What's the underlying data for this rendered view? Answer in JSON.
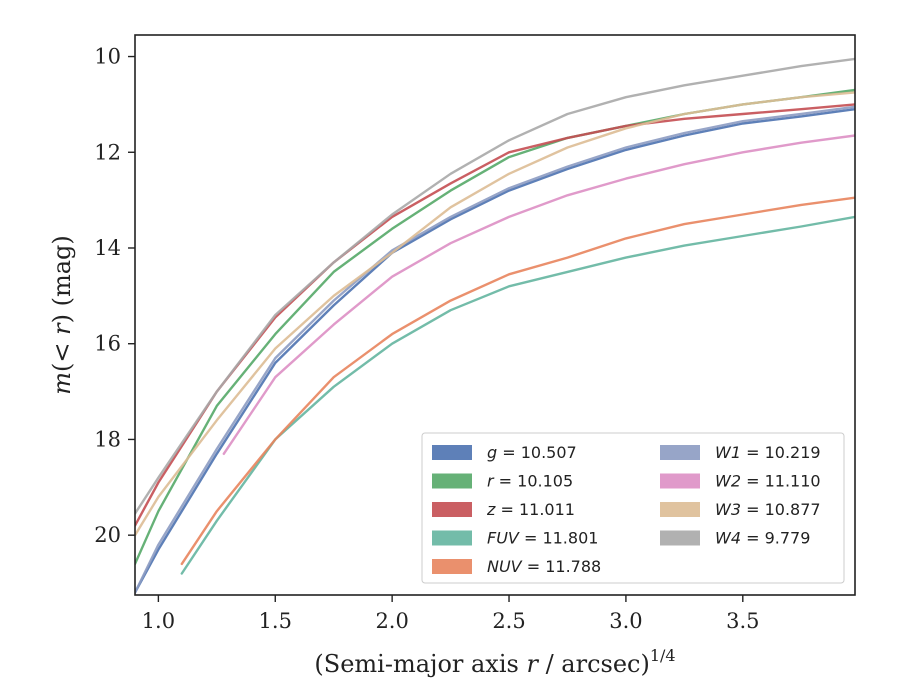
{
  "chart_data": {
    "type": "line",
    "xlabel": "(Semi-major axis r / arcsec)^1/4",
    "ylabel": "m(< r) (mag)",
    "xlim": [
      0.9,
      3.98
    ],
    "ylim": [
      21.25,
      9.55
    ],
    "y_inverted": true,
    "grid": false,
    "legend_placement": "lower-right",
    "legend_columns": 2,
    "x_ticks": [
      "1.0",
      "1.5",
      "2.0",
      "2.5",
      "3.0",
      "3.5"
    ],
    "y_ticks": [
      "10",
      "12",
      "14",
      "16",
      "18",
      "20"
    ],
    "series": [
      {
        "name": "g",
        "value": "10.507",
        "color": "#4c72b0",
        "x": [
          0.9,
          1.0,
          1.25,
          1.5,
          1.75,
          2.0,
          2.25,
          2.5,
          2.75,
          3.0,
          3.25,
          3.5,
          3.75,
          3.98
        ],
        "y": [
          21.2,
          20.3,
          18.3,
          16.4,
          15.2,
          14.1,
          13.4,
          12.8,
          12.35,
          11.95,
          11.65,
          11.4,
          11.25,
          11.1
        ]
      },
      {
        "name": "r",
        "value": "10.105",
        "color": "#55a868",
        "x": [
          0.9,
          1.0,
          1.25,
          1.5,
          1.75,
          2.0,
          2.25,
          2.5,
          2.75,
          3.0,
          3.25,
          3.5,
          3.75,
          3.98
        ],
        "y": [
          20.6,
          19.5,
          17.3,
          15.8,
          14.5,
          13.6,
          12.8,
          12.1,
          11.7,
          11.45,
          11.2,
          11.0,
          10.85,
          10.7
        ]
      },
      {
        "name": "z",
        "value": "11.011",
        "color": "#c44e52",
        "x": [
          0.9,
          1.0,
          1.25,
          1.5,
          1.75,
          2.0,
          2.25,
          2.5,
          2.75,
          3.0,
          3.25,
          3.5,
          3.75,
          3.98
        ],
        "y": [
          19.8,
          18.9,
          17.0,
          15.45,
          14.3,
          13.35,
          12.65,
          12.0,
          11.7,
          11.45,
          11.3,
          11.2,
          11.1,
          11.0
        ]
      },
      {
        "name": "FUV",
        "value": "11.801",
        "color": "#64b5a0",
        "x": [
          1.1,
          1.25,
          1.5,
          1.75,
          2.0,
          2.25,
          2.5,
          2.75,
          3.0,
          3.25,
          3.5,
          3.75,
          3.98
        ],
        "y": [
          20.8,
          19.7,
          18.0,
          16.9,
          16.0,
          15.3,
          14.8,
          14.5,
          14.2,
          13.95,
          13.75,
          13.55,
          13.35
        ]
      },
      {
        "name": "NUV",
        "value": "11.788",
        "color": "#e8845d",
        "x": [
          1.1,
          1.25,
          1.5,
          1.75,
          2.0,
          2.25,
          2.5,
          2.75,
          3.0,
          3.25,
          3.5,
          3.75,
          3.98
        ],
        "y": [
          20.6,
          19.5,
          18.0,
          16.7,
          15.8,
          15.1,
          14.55,
          14.2,
          13.8,
          13.5,
          13.3,
          13.1,
          12.95
        ]
      },
      {
        "name": "W1",
        "value": "10.219",
        "color": "#8c9bc2",
        "x": [
          0.9,
          1.0,
          1.25,
          1.5,
          1.75,
          2.0,
          2.25,
          2.5,
          2.75,
          3.0,
          3.25,
          3.5,
          3.75,
          3.98
        ],
        "y": [
          21.2,
          20.2,
          18.2,
          16.3,
          15.1,
          14.05,
          13.35,
          12.75,
          12.3,
          11.9,
          11.6,
          11.35,
          11.2,
          11.05
        ]
      },
      {
        "name": "W2",
        "value": "11.110",
        "color": "#dd8fc4",
        "x": [
          1.28,
          1.5,
          1.75,
          2.0,
          2.25,
          2.5,
          2.75,
          3.0,
          3.25,
          3.5,
          3.75,
          3.98
        ],
        "y": [
          18.3,
          16.7,
          15.6,
          14.6,
          13.9,
          13.35,
          12.9,
          12.55,
          12.25,
          12.0,
          11.8,
          11.65
        ]
      },
      {
        "name": "W3",
        "value": "10.877",
        "color": "#ddbc95",
        "x": [
          0.9,
          1.0,
          1.25,
          1.5,
          1.75,
          2.0,
          2.25,
          2.5,
          2.75,
          3.0,
          3.25,
          3.5,
          3.75,
          3.98
        ],
        "y": [
          20.0,
          19.2,
          17.6,
          16.1,
          15.0,
          14.1,
          13.15,
          12.45,
          11.9,
          11.5,
          11.2,
          11.0,
          10.85,
          10.75
        ]
      },
      {
        "name": "W4",
        "value": "9.779",
        "color": "#a8a8a8",
        "x": [
          0.9,
          1.0,
          1.25,
          1.5,
          1.75,
          2.0,
          2.25,
          2.5,
          2.75,
          3.0,
          3.25,
          3.5,
          3.75,
          3.98
        ],
        "y": [
          19.55,
          18.8,
          17.0,
          15.4,
          14.3,
          13.3,
          12.45,
          11.75,
          11.2,
          10.85,
          10.6,
          10.4,
          10.2,
          10.05
        ]
      }
    ]
  }
}
